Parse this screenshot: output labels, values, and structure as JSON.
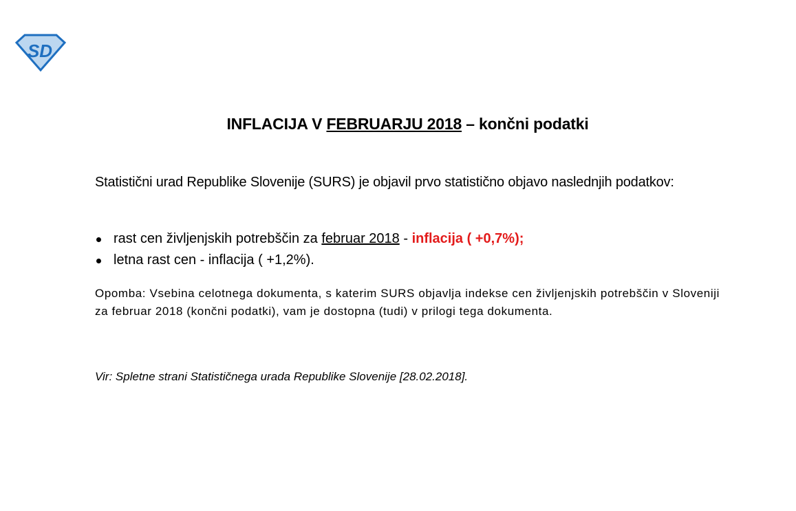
{
  "logo": {
    "text": "SD",
    "color": "#1e6fc0"
  },
  "title": {
    "prefix": "INFLACIJA V ",
    "underlined": "FEBRUARJU 2018",
    "suffix": " – končni podatki"
  },
  "intro": "Statistični urad Republike Slovenije (SURS) je objavil prvo statistično objavo naslednjih podatkov:",
  "bullets": [
    {
      "text": "rast cen življenjskih potrebščin za ",
      "underlined": "februar 2018",
      "sep": " - ",
      "highlight": "inflacija ( +0,7%);",
      "highlight_color": "#e31b1b"
    },
    {
      "text": "letna rast cen - inflacija ( +1,2%)."
    }
  ],
  "note": "Opomba: Vsebina celotnega dokumenta, s katerim SURS objavlja indekse cen življenjskih potrebščin v Sloveniji za februar 2018 (končni podatki), vam je dostopna (tudi) v prilogi tega dokumenta.",
  "source": "Vir: Spletne strani Statističnega urada Republike Slovenije [28.02.2018]."
}
